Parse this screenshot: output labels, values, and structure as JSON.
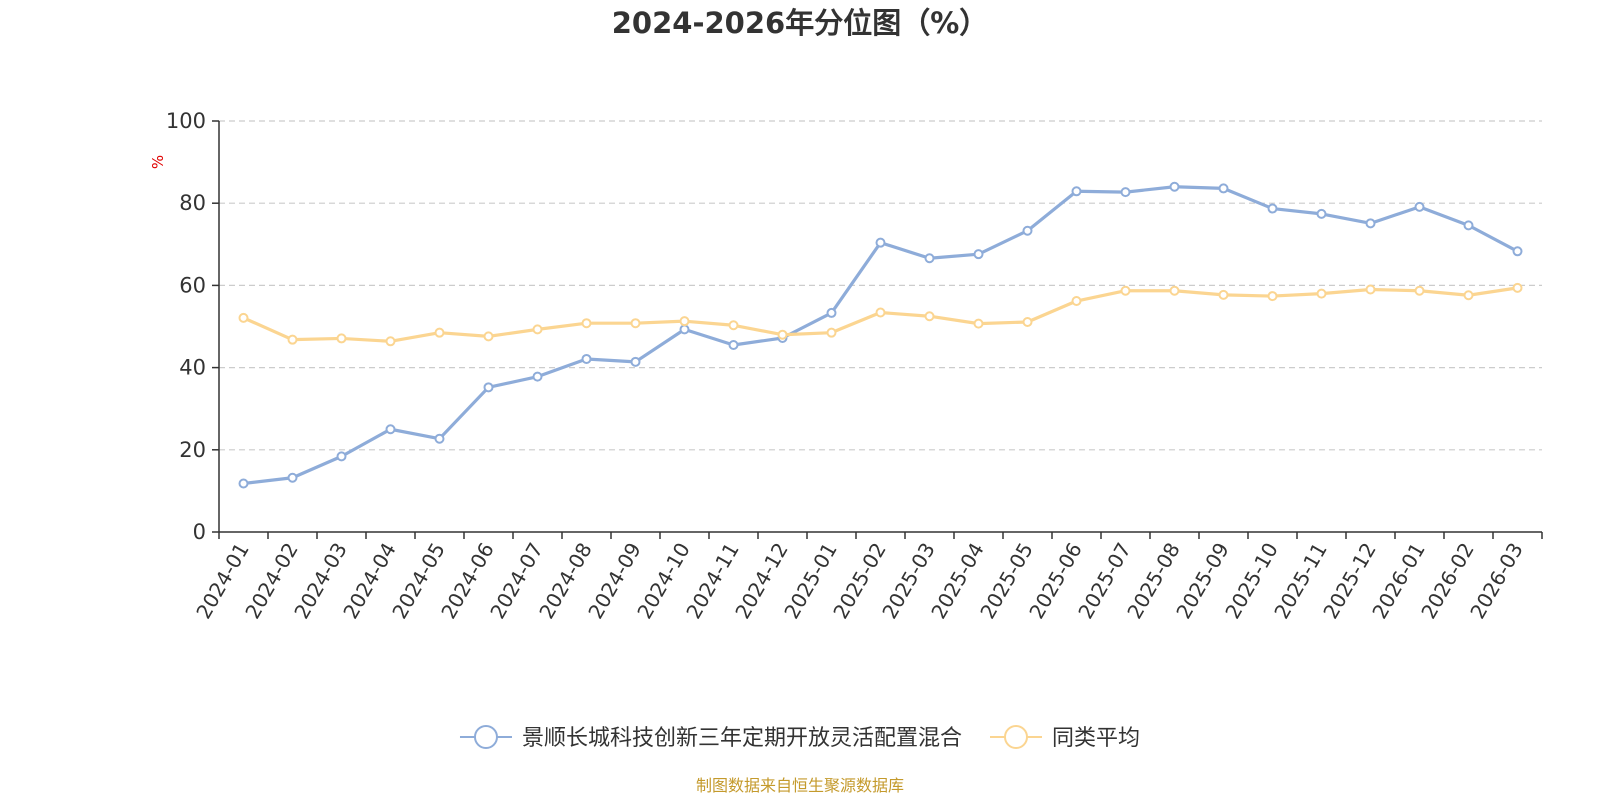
{
  "chart_data": {
    "type": "line",
    "title": "2024-2026年分位图（%）",
    "ylabel": "%",
    "xlabel": "",
    "ylim": [
      0,
      100
    ],
    "yticks": [
      0,
      20,
      40,
      60,
      80,
      100
    ],
    "grid": true,
    "legend_position": "bottom",
    "categories": [
      "2024-01",
      "2024-02",
      "2024-03",
      "2024-04",
      "2024-05",
      "2024-06",
      "2024-07",
      "2024-08",
      "2024-09",
      "2024-10",
      "2024-11",
      "2024-12",
      "2025-01",
      "2025-02",
      "2025-03",
      "2025-04",
      "2025-05",
      "2025-06",
      "2025-07",
      "2025-08",
      "2025-09",
      "2025-10",
      "2025-11",
      "2025-12",
      "2026-01",
      "2026-02",
      "2026-03"
    ],
    "series": [
      {
        "name": "景顺长城科技创新三年定期开放灵活配置混合",
        "color": "#8eacd9",
        "values": [
          11.8,
          13.2,
          18.4,
          25.0,
          22.7,
          35.2,
          37.8,
          42.1,
          41.4,
          49.3,
          45.5,
          47.2,
          53.3,
          70.4,
          66.6,
          67.6,
          73.3,
          82.9,
          82.7,
          84.0,
          83.6,
          78.7,
          77.4,
          75.1,
          79.1,
          74.6,
          68.3
        ]
      },
      {
        "name": "同类平均",
        "color": "#fbd591",
        "values": [
          52.1,
          46.8,
          47.1,
          46.4,
          48.5,
          47.6,
          49.3,
          50.8,
          50.8,
          51.3,
          50.3,
          48.0,
          48.5,
          53.4,
          52.5,
          50.7,
          51.1,
          56.2,
          58.7,
          58.7,
          57.7,
          57.4,
          58.0,
          59.0,
          58.7,
          57.6,
          59.4
        ]
      }
    ]
  },
  "source_text": "制图数据来自恒生聚源数据库"
}
